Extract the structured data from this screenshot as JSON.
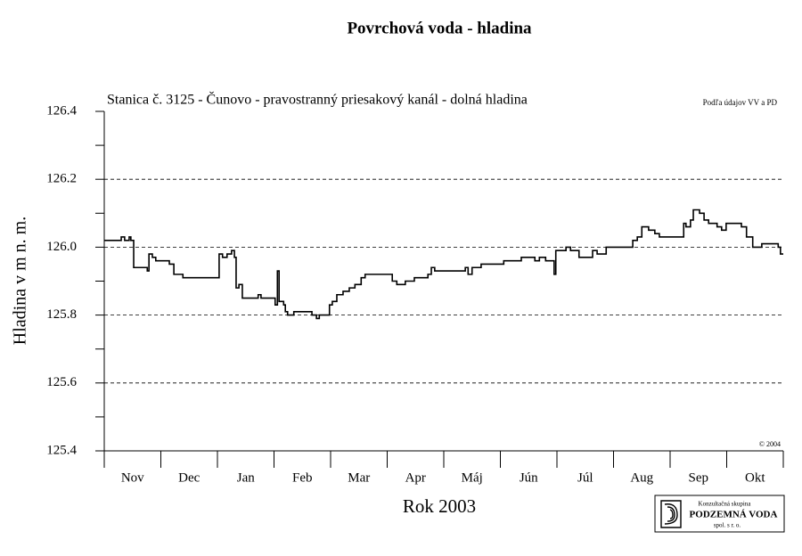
{
  "chart_data": {
    "type": "line",
    "title": "Povrchová voda - hladina",
    "subtitle": "Stanica č. 3125 - Čunovo - pravostranný priesakový kanál - dolná hladina",
    "source_note": "Podľa údajov VV a PD",
    "copyright": "© 2004",
    "y_label": "Hladina v m n. m.",
    "x_label": "Rok 2003",
    "categories": [
      "Nov",
      "Dec",
      "Jan",
      "Feb",
      "Mar",
      "Apr",
      "Máj",
      "Jún",
      "Júl",
      "Aug",
      "Sep",
      "Okt"
    ],
    "xlim": [
      0,
      12
    ],
    "ylim": [
      125.4,
      126.4
    ],
    "yticks": [
      125.4,
      125.6,
      125.8,
      {
        "value": 126.0,
        "label": "126.0"
      },
      126.2,
      126.4
    ],
    "grid": true,
    "step": true,
    "x": [
      0,
      0.2,
      0.3,
      0.36,
      0.44,
      0.47,
      0.52,
      0.57,
      0.72,
      0.76,
      0.79,
      0.85,
      0.91,
      1.15,
      1.23,
      1.39,
      2.02,
      2.03,
      2.09,
      2.17,
      2.25,
      2.3,
      2.33,
      2.38,
      2.44,
      2.69,
      2.72,
      2.77,
      3.01,
      3.02,
      3.06,
      3.09,
      3.17,
      3.2,
      3.24,
      3.35,
      3.64,
      3.67,
      3.75,
      3.8,
      3.91,
      3.98,
      4.03,
      4.11,
      4.22,
      4.33,
      4.43,
      4.54,
      4.61,
      5.04,
      5.09,
      5.17,
      5.32,
      5.48,
      5.72,
      5.78,
      5.84,
      6.35,
      6.38,
      6.43,
      6.5,
      6.66,
      6.9,
      7.06,
      7.37,
      7.61,
      7.69,
      7.8,
      7.92,
      7.95,
      7.98,
      8.08,
      8.16,
      8.24,
      8.39,
      8.55,
      8.63,
      8.71,
      8.87,
      9.26,
      9.34,
      9.42,
      9.5,
      9.62,
      9.73,
      9.81,
      10.2,
      10.24,
      10.28,
      10.36,
      10.41,
      10.52,
      10.6,
      10.68,
      10.83,
      10.91,
      10.99,
      11.2,
      11.26,
      11.35,
      11.46,
      11.62,
      11.86,
      11.91,
      11.95,
      12
    ],
    "series": [
      {
        "color": "#000000",
        "values": [
          126.02,
          126.02,
          126.03,
          126.02,
          126.03,
          126.02,
          125.94,
          125.94,
          125.94,
          125.93,
          125.98,
          125.97,
          125.96,
          125.95,
          125.92,
          125.91,
          125.91,
          125.98,
          125.97,
          125.98,
          125.99,
          125.97,
          125.88,
          125.89,
          125.85,
          125.85,
          125.86,
          125.85,
          125.85,
          125.83,
          125.93,
          125.84,
          125.83,
          125.81,
          125.8,
          125.81,
          125.81,
          125.8,
          125.79,
          125.8,
          125.8,
          125.83,
          125.84,
          125.86,
          125.87,
          125.88,
          125.89,
          125.91,
          125.92,
          125.92,
          125.9,
          125.89,
          125.9,
          125.91,
          125.92,
          125.94,
          125.93,
          125.93,
          125.94,
          125.92,
          125.94,
          125.95,
          125.95,
          125.96,
          125.97,
          125.96,
          125.97,
          125.96,
          125.96,
          125.92,
          125.99,
          125.99,
          126.0,
          125.99,
          125.97,
          125.97,
          125.99,
          125.98,
          126.0,
          126.0,
          126.02,
          126.03,
          126.06,
          126.05,
          126.04,
          126.03,
          126.03,
          126.07,
          126.06,
          126.08,
          126.11,
          126.1,
          126.08,
          126.07,
          126.06,
          126.05,
          126.07,
          126.07,
          126.06,
          126.03,
          126.0,
          126.01,
          126.01,
          126.0,
          125.98,
          125.98
        ]
      }
    ]
  },
  "logo": {
    "line1": "Konzultačná skupina",
    "line2": "PODZEMNÁ VODA",
    "line3": "spol. s r. o."
  }
}
